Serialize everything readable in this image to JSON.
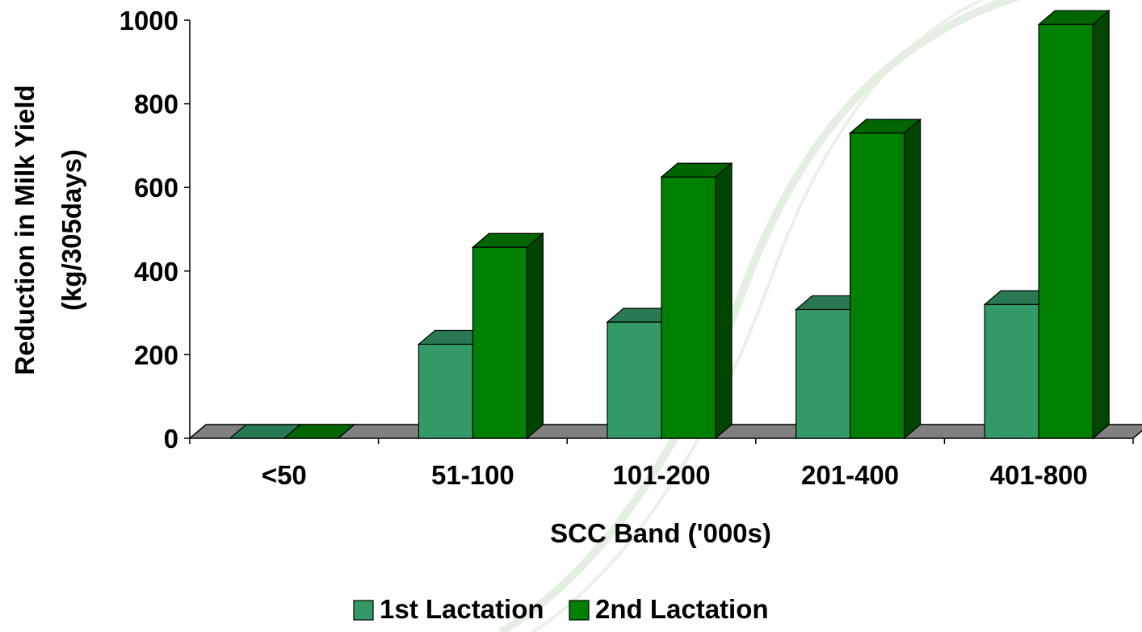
{
  "chart_data": {
    "type": "bar",
    "categories": [
      "<50",
      "51-100",
      "101-200",
      "201-400",
      "401-800"
    ],
    "series": [
      {
        "name": "1st Lactation",
        "values": [
          0,
          225,
          278,
          308,
          320
        ],
        "color": "#339966"
      },
      {
        "name": "2nd Lactation",
        "values": [
          0,
          457,
          625,
          730,
          990
        ],
        "color": "#008000"
      }
    ],
    "xlabel": "SCC Band ('000s)",
    "ylabel_line1": "Reduction in Milk Yield",
    "ylabel_line2": "(kg/305days)",
    "ylim": [
      0,
      1000
    ],
    "yticks": [
      0,
      200,
      400,
      600,
      800,
      1000
    ],
    "yticks_text": [
      "0",
      "200",
      "400",
      "600",
      "800",
      "1000"
    ],
    "legend_position": "bottom",
    "style": "3d",
    "floor_color": "#808080"
  }
}
